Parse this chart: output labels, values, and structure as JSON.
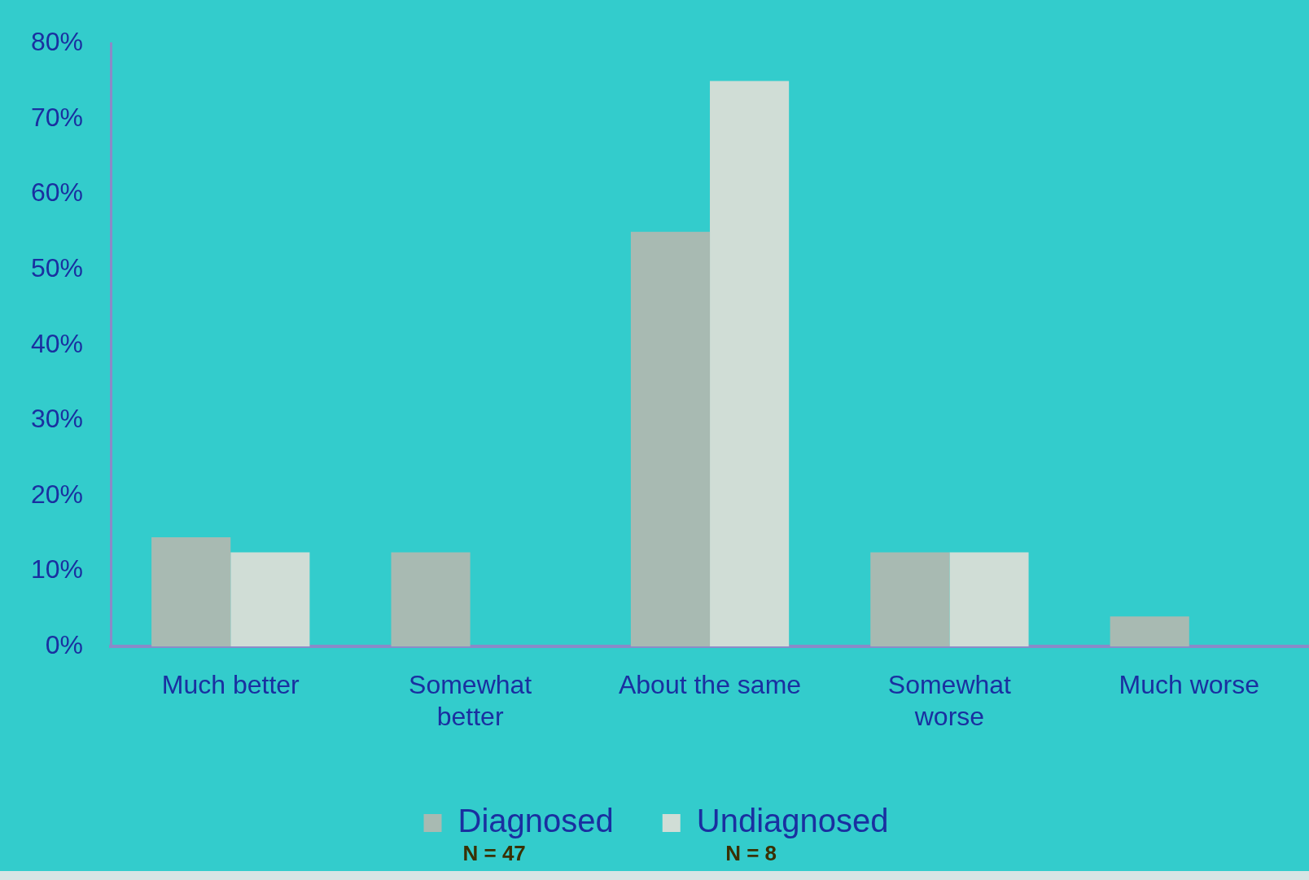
{
  "chart_data": {
    "type": "bar",
    "categories": [
      "Much better",
      "Somewhat better",
      "About the same",
      "Somewhat worse",
      "Much worse"
    ],
    "series": [
      {
        "name": "Diagnosed",
        "color": "#a8bab2",
        "values": [
          14.5,
          12.5,
          55,
          12.5,
          4
        ]
      },
      {
        "name": "Undiagnosed",
        "color": "#d0ddd6",
        "values": [
          12.5,
          0,
          75,
          12.5,
          0
        ]
      }
    ],
    "ylim": [
      0,
      80
    ],
    "yticks": [
      {
        "value": 0,
        "label": "0%"
      },
      {
        "value": 10,
        "label": "10%"
      },
      {
        "value": 20,
        "label": "20%"
      },
      {
        "value": 30,
        "label": "30%"
      },
      {
        "value": 40,
        "label": "40%"
      },
      {
        "value": 50,
        "label": "50%"
      },
      {
        "value": 60,
        "label": "60%"
      },
      {
        "value": 70,
        "label": "70%"
      },
      {
        "value": 80,
        "label": "80%"
      }
    ],
    "grid": false,
    "legend": "bottom",
    "annotations": [
      "N = 47",
      "N = 8"
    ]
  }
}
